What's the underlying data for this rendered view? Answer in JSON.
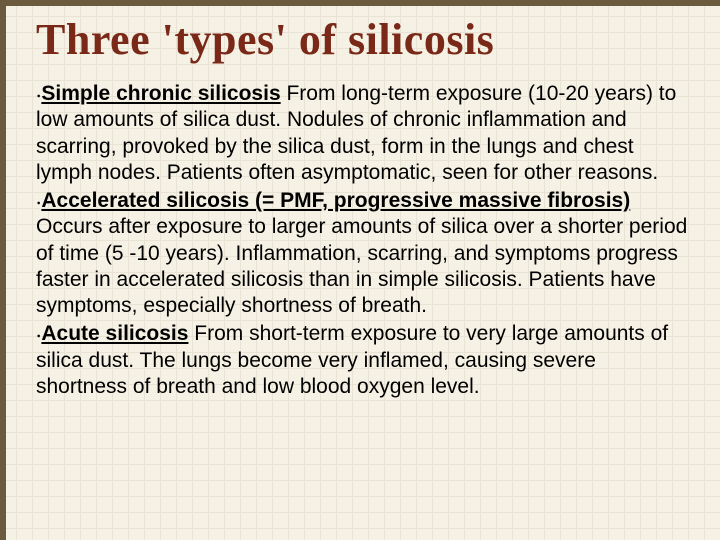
{
  "slide": {
    "title": "Three 'types' of silicosis",
    "background_color": "#f5f1e4",
    "grid_color": "#e8e3d4",
    "border_color": "#6b5a3e",
    "title_color": "#7a2818",
    "title_fontsize": 44,
    "body_fontsize": 21,
    "bullet_glyph": "⸳",
    "items": [
      {
        "lead_underlined": "Simple chronic silicosis",
        "lead_extra": "",
        "body": "   From long-term exposure (10-20 years) to low amounts of silica dust.  Nodules of chronic inflammation and scarring,  provoked by the silica dust, form in the lungs and chest lymph nodes.  Patients often asymptomatic, seen for other reasons."
      },
      {
        "lead_underlined": "Accelerated silicosis (= PMF, progressive massive fibrosis)",
        "lead_extra": "",
        "body": "  Occurs after exposure to larger amounts of silica over a shorter period of time (5 -10 years).  Inflammation, scarring, and symptoms progress faster in accelerated silicosis than in simple silicosis.  Patients have symptoms, especially shortness of breath."
      },
      {
        "lead_underlined": "Acute silicosis",
        "lead_extra": "",
        "body": "  From short-term exposure to very large amounts of silica dust.  The lungs become very inflamed, causing severe shortness of breath and low blood oxygen level."
      }
    ]
  }
}
